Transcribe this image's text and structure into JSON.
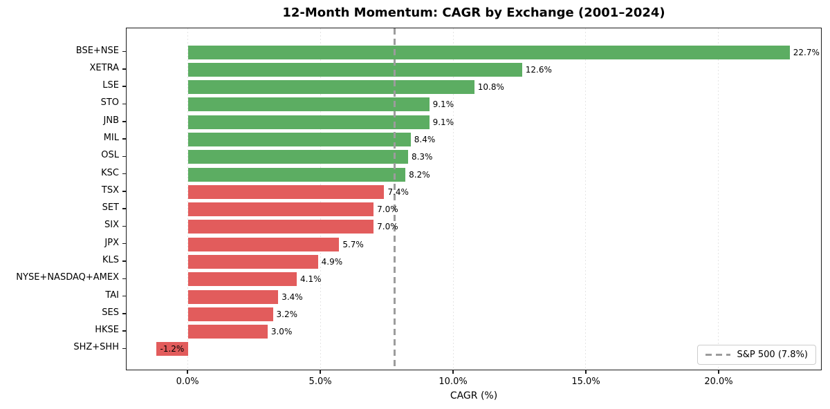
{
  "chart_data": {
    "type": "bar",
    "orientation": "horizontal",
    "title": "12-Month Momentum: CAGR by Exchange (2001–2024)",
    "xlabel": "CAGR (%)",
    "categories": [
      "BSE+NSE",
      "XETRA",
      "LSE",
      "STO",
      "JNB",
      "MIL",
      "OSL",
      "KSC",
      "TSX",
      "SET",
      "SIX",
      "JPX",
      "KLS",
      "NYSE+NASDAQ+AMEX",
      "TAI",
      "SES",
      "HKSE",
      "SHZ+SHH"
    ],
    "values": [
      22.7,
      12.6,
      10.8,
      9.1,
      9.1,
      8.4,
      8.3,
      8.2,
      7.4,
      7.0,
      7.0,
      5.7,
      4.9,
      4.1,
      3.4,
      3.2,
      3.0,
      -1.2
    ],
    "value_labels": [
      "22.7%",
      "12.6%",
      "10.8%",
      "9.1%",
      "9.1%",
      "8.4%",
      "8.3%",
      "8.2%",
      "7.4%",
      "7.0%",
      "7.0%",
      "5.7%",
      "4.9%",
      "4.1%",
      "3.4%",
      "3.2%",
      "3.0%",
      "-1.2%"
    ],
    "bar_colors": [
      "green",
      "green",
      "green",
      "green",
      "green",
      "green",
      "green",
      "green",
      "red",
      "red",
      "red",
      "red",
      "red",
      "red",
      "red",
      "red",
      "red",
      "red"
    ],
    "colors": {
      "green": "#5cad62",
      "red": "#e25c5c",
      "reference": "#9c9c9c",
      "grid": "#e4e4e4",
      "spine": "#1a1a1a"
    },
    "xlim": [
      -2.32,
      23.88
    ],
    "xticks": {
      "values": [
        0,
        5,
        10,
        15,
        20
      ],
      "labels": [
        "0.0%",
        "5.0%",
        "10.0%",
        "15.0%",
        "20.0%"
      ]
    },
    "grid": "dotted-vertical-on",
    "legend_position": "lower-right",
    "reference_line": {
      "value": 7.8,
      "style": "dashed",
      "label": "S&P 500 (7.8%)"
    }
  }
}
